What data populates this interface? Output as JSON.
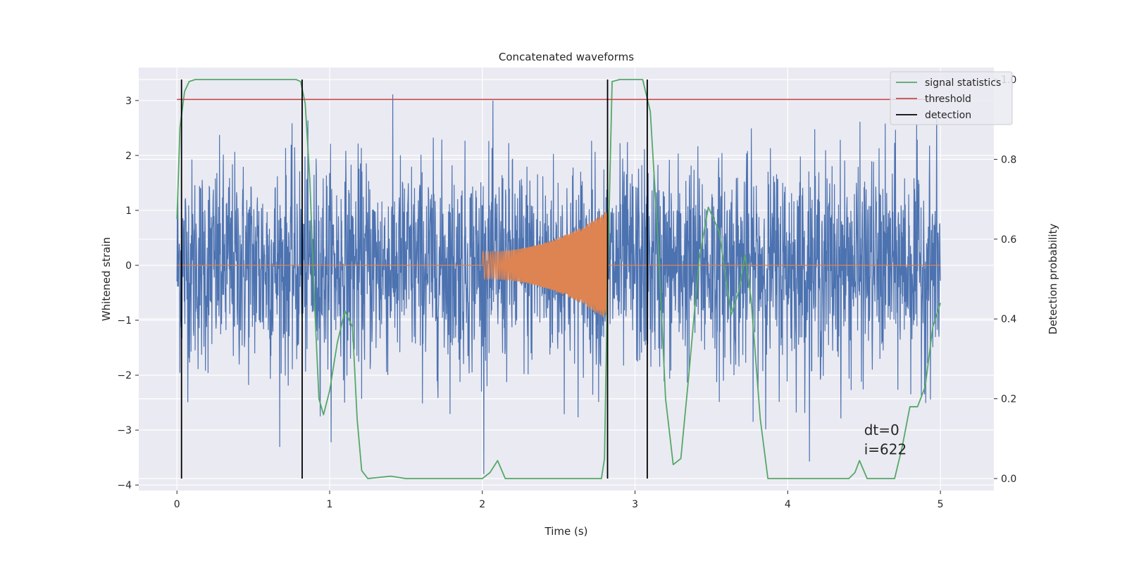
{
  "chart_data": {
    "type": "line",
    "title": "Concatenated waveforms",
    "xlabel": "Time (s)",
    "ylabel_left": "Whitened strain",
    "ylabel_right": "Detection probability",
    "xlim": [
      -0.25,
      5.35
    ],
    "ylim_left": [
      -4.1,
      3.6
    ],
    "ylim_right": [
      -0.03,
      1.03
    ],
    "xticks": [
      0,
      1,
      2,
      3,
      4,
      5
    ],
    "yticks_left": [
      -4,
      -3,
      -2,
      -1,
      0,
      1,
      2,
      3
    ],
    "yticks_right": [
      0.0,
      0.2,
      0.4,
      0.6,
      0.8,
      1.0
    ],
    "grid": true,
    "legend_position": "top-right",
    "legend": [
      {
        "label": "signal statistics",
        "color": "#55a868"
      },
      {
        "label": "threshold",
        "color": "#c44e52"
      },
      {
        "label": "detection",
        "color": "#000000"
      }
    ],
    "series": [
      {
        "role": "whitened-noise",
        "color": "#4c72b0",
        "axis": "left",
        "x_range": [
          0,
          5
        ],
        "approx_envelope": [
          -3.8,
          3.3
        ]
      },
      {
        "role": "injected-chirp",
        "color": "#dd8452",
        "axis": "left",
        "x_range": [
          2.0,
          2.82
        ],
        "amplitude_start": 0.25,
        "amplitude_end": 1.0
      },
      {
        "name": "signal statistics",
        "color": "#55a868",
        "axis": "right",
        "points": [
          [
            0.0,
            0.65
          ],
          [
            0.02,
            0.88
          ],
          [
            0.05,
            0.97
          ],
          [
            0.08,
            0.995
          ],
          [
            0.12,
            1.0
          ],
          [
            0.78,
            1.0
          ],
          [
            0.81,
            0.995
          ],
          [
            0.84,
            0.94
          ],
          [
            0.87,
            0.75
          ],
          [
            0.9,
            0.45
          ],
          [
            0.93,
            0.2
          ],
          [
            0.96,
            0.16
          ],
          [
            1.0,
            0.22
          ],
          [
            1.05,
            0.34
          ],
          [
            1.1,
            0.42
          ],
          [
            1.15,
            0.38
          ],
          [
            1.18,
            0.15
          ],
          [
            1.21,
            0.02
          ],
          [
            1.25,
            0.0
          ],
          [
            1.4,
            0.006
          ],
          [
            1.5,
            0.0
          ],
          [
            2.0,
            0.0
          ],
          [
            2.05,
            0.015
          ],
          [
            2.1,
            0.045
          ],
          [
            2.15,
            0.0
          ],
          [
            2.78,
            0.0
          ],
          [
            2.8,
            0.05
          ],
          [
            2.82,
            0.5
          ],
          [
            2.85,
            0.995
          ],
          [
            2.9,
            1.0
          ],
          [
            3.05,
            1.0
          ],
          [
            3.1,
            0.92
          ],
          [
            3.15,
            0.6
          ],
          [
            3.2,
            0.2
          ],
          [
            3.25,
            0.035
          ],
          [
            3.3,
            0.05
          ],
          [
            3.35,
            0.25
          ],
          [
            3.42,
            0.55
          ],
          [
            3.48,
            0.68
          ],
          [
            3.55,
            0.62
          ],
          [
            3.63,
            0.41
          ],
          [
            3.68,
            0.47
          ],
          [
            3.72,
            0.56
          ],
          [
            3.76,
            0.45
          ],
          [
            3.82,
            0.15
          ],
          [
            3.87,
            0.0
          ],
          [
            4.4,
            0.0
          ],
          [
            4.44,
            0.015
          ],
          [
            4.47,
            0.045
          ],
          [
            4.52,
            0.0
          ],
          [
            4.7,
            0.0
          ],
          [
            4.75,
            0.08
          ],
          [
            4.8,
            0.18
          ],
          [
            4.85,
            0.18
          ],
          [
            4.9,
            0.23
          ],
          [
            4.95,
            0.38
          ],
          [
            5.0,
            0.44
          ]
        ]
      },
      {
        "name": "threshold",
        "color": "#c44e52",
        "axis": "right",
        "points": [
          [
            0.0,
            0.95
          ],
          [
            5.0,
            0.95
          ]
        ]
      },
      {
        "name": "detection",
        "color": "#000000",
        "axis": "right",
        "vlines_x": [
          0.03,
          0.82,
          2.82,
          3.08
        ]
      }
    ],
    "annotations": [
      "dt=0",
      "i=622"
    ]
  }
}
